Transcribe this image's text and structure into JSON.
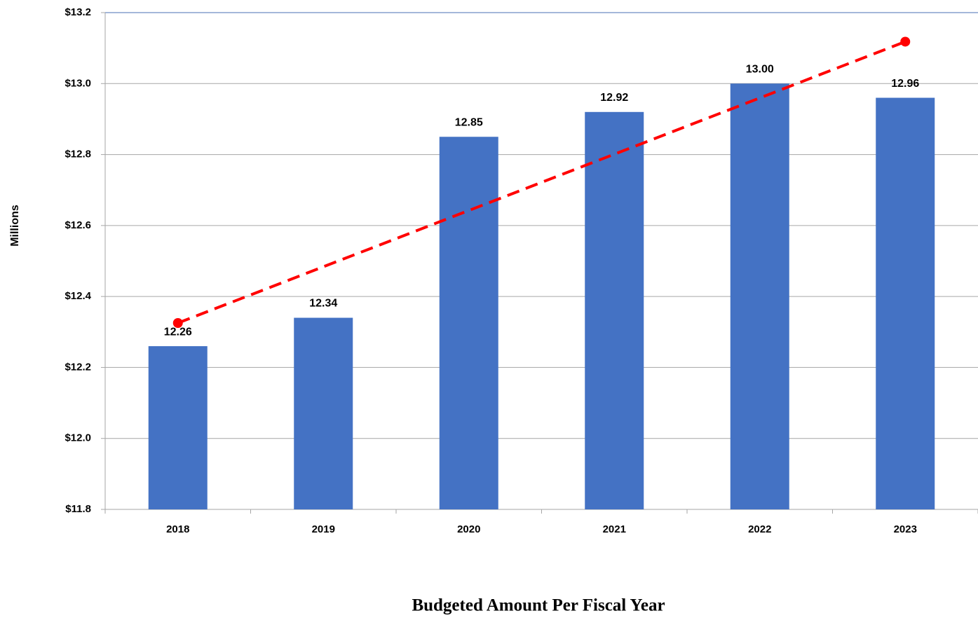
{
  "chart_data": {
    "type": "bar",
    "title": "Budgeted Amount Per Fiscal Year",
    "y_label": "Millions",
    "categories": [
      "2018",
      "2019",
      "2020",
      "2021",
      "2022",
      "2023"
    ],
    "values": [
      12.26,
      12.34,
      12.85,
      12.92,
      13.0,
      12.96
    ],
    "value_labels": [
      "12.26",
      "12.34",
      "12.85",
      "12.92",
      "13.00",
      "12.96"
    ],
    "color": "#4472c4",
    "trendline": "linear",
    "trendline_color": "#ff0000",
    "ylim": [
      11.8,
      13.2
    ],
    "yticks": [
      {
        "value": 11.8,
        "label": "$11.8"
      },
      {
        "value": 12.0,
        "label": "$12.0"
      },
      {
        "value": 12.2,
        "label": "$12.2"
      },
      {
        "value": 12.4,
        "label": "$12.4"
      },
      {
        "value": 12.6,
        "label": "$12.6"
      },
      {
        "value": 12.8,
        "label": "$12.8"
      },
      {
        "value": 13.0,
        "label": "$13.0"
      },
      {
        "value": 13.2,
        "label": "$13.2"
      }
    ],
    "grid": true
  }
}
